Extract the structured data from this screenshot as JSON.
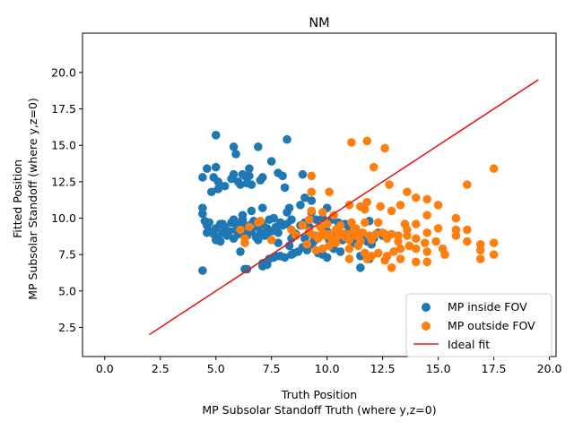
{
  "chart_data": {
    "type": "scatter",
    "title": "NM",
    "xlabel": [
      "Truth Position",
      "MP Subsolar Standoff Truth (where y,z=0)"
    ],
    "ylabel": [
      "Fitted Position",
      "MP Subsolar Standoff (where y,z=0)"
    ],
    "xlim": [
      -1.0,
      20.3
    ],
    "ylim": [
      0.5,
      22.7
    ],
    "xticks": [
      "0.0",
      "2.5",
      "5.0",
      "7.5",
      "10.0",
      "12.5",
      "15.0",
      "17.5",
      "20.0"
    ],
    "xtick_values": [
      0,
      2.5,
      5,
      7.5,
      10,
      12.5,
      15,
      17.5,
      20
    ],
    "yticks": [
      "2.5",
      "5.0",
      "7.5",
      "10.0",
      "12.5",
      "15.0",
      "17.5",
      "20.0"
    ],
    "ytick_values": [
      2.5,
      5,
      7.5,
      10,
      12.5,
      15,
      17.5,
      20
    ],
    "grid": false,
    "legend_position": "bottom-right",
    "series": [
      {
        "name": "MP inside FOV",
        "kind": "scatter",
        "color": "#1f77b4",
        "points": [
          [
            5.0,
            15.7
          ],
          [
            8.2,
            15.4
          ],
          [
            5.8,
            14.9
          ],
          [
            6.9,
            14.9
          ],
          [
            5.9,
            14.4
          ],
          [
            7.5,
            13.9
          ],
          [
            4.6,
            13.4
          ],
          [
            5.0,
            13.5
          ],
          [
            6.5,
            13.4
          ],
          [
            4.4,
            12.8
          ],
          [
            4.9,
            12.8
          ],
          [
            5.1,
            12.5
          ],
          [
            5.4,
            12.2
          ],
          [
            5.7,
            12.7
          ],
          [
            5.8,
            13.0
          ],
          [
            6.0,
            12.5
          ],
          [
            6.1,
            12.3
          ],
          [
            6.3,
            12.9
          ],
          [
            6.4,
            12.4
          ],
          [
            6.6,
            12.3
          ],
          [
            6.2,
            13.0
          ],
          [
            6.5,
            12.9
          ],
          [
            7.0,
            12.6
          ],
          [
            7.1,
            12.8
          ],
          [
            7.8,
            13.1
          ],
          [
            8.0,
            12.9
          ],
          [
            8.1,
            12.1
          ],
          [
            4.8,
            11.8
          ],
          [
            5.1,
            12.0
          ],
          [
            8.9,
            13.0
          ],
          [
            9.0,
            11.4
          ],
          [
            9.3,
            11.2
          ],
          [
            4.4,
            10.7
          ],
          [
            4.4,
            10.3
          ],
          [
            6.2,
            10.2
          ],
          [
            6.6,
            10.5
          ],
          [
            7.1,
            10.7
          ],
          [
            8.2,
            10.4
          ],
          [
            8.3,
            10.7
          ],
          [
            8.8,
            10.9
          ],
          [
            9.3,
            10.4
          ],
          [
            10.0,
            10.7
          ],
          [
            4.5,
            9.8
          ],
          [
            4.6,
            9.5
          ],
          [
            4.7,
            9.7
          ],
          [
            4.8,
            9.1
          ],
          [
            4.9,
            8.9
          ],
          [
            5.0,
            9.3
          ],
          [
            5.1,
            8.7
          ],
          [
            5.2,
            9.6
          ],
          [
            5.3,
            9.0
          ],
          [
            5.4,
            9.4
          ],
          [
            5.5,
            8.8
          ],
          [
            5.6,
            9.1
          ],
          [
            5.2,
            8.4
          ],
          [
            5.7,
            9.7
          ],
          [
            5.8,
            8.6
          ],
          [
            5.9,
            9.2
          ],
          [
            6.0,
            9.6
          ],
          [
            6.1,
            9.0
          ],
          [
            6.2,
            9.9
          ],
          [
            6.3,
            9.3
          ],
          [
            6.4,
            8.8
          ],
          [
            6.5,
            9.5
          ],
          [
            6.6,
            9.1
          ],
          [
            6.7,
            9.8
          ],
          [
            6.8,
            8.7
          ],
          [
            6.9,
            9.4
          ],
          [
            7.0,
            9.0
          ],
          [
            7.1,
            9.6
          ],
          [
            7.2,
            8.8
          ],
          [
            7.3,
            9.3
          ],
          [
            7.4,
            9.9
          ],
          [
            7.5,
            9.1
          ],
          [
            7.6,
            10.0
          ],
          [
            7.7,
            9.4
          ],
          [
            7.8,
            9.0
          ],
          [
            7.9,
            9.7
          ],
          [
            8.0,
            9.5
          ],
          [
            8.2,
            9.6
          ],
          [
            8.4,
            9.9
          ],
          [
            8.5,
            9.0
          ],
          [
            8.6,
            8.9
          ],
          [
            8.8,
            9.5
          ],
          [
            9.0,
            9.7
          ],
          [
            9.2,
            9.4
          ],
          [
            9.5,
            9.9
          ],
          [
            9.8,
            10.0
          ],
          [
            10.2,
            9.9
          ],
          [
            10.5,
            9.7
          ],
          [
            10.8,
            9.6
          ],
          [
            11.0,
            9.3
          ],
          [
            6.1,
            7.7
          ],
          [
            7.1,
            6.9
          ],
          [
            7.1,
            6.7
          ],
          [
            7.3,
            6.8
          ],
          [
            7.4,
            7.2
          ],
          [
            7.6,
            7.3
          ],
          [
            7.7,
            7.4
          ],
          [
            7.9,
            7.4
          ],
          [
            8.1,
            7.3
          ],
          [
            8.4,
            7.5
          ],
          [
            8.5,
            7.6
          ],
          [
            8.3,
            8.1
          ],
          [
            8.7,
            7.7
          ],
          [
            8.9,
            8.0
          ],
          [
            9.1,
            7.8
          ],
          [
            9.3,
            8.2
          ],
          [
            9.6,
            7.6
          ],
          [
            9.8,
            7.5
          ],
          [
            10.0,
            7.3
          ],
          [
            10.3,
            7.9
          ],
          [
            10.6,
            7.7
          ],
          [
            9.0,
            8.6
          ],
          [
            9.4,
            8.4
          ],
          [
            9.7,
            8.8
          ],
          [
            10.1,
            8.5
          ],
          [
            10.4,
            8.8
          ],
          [
            10.7,
            8.5
          ],
          [
            11.0,
            8.7
          ],
          [
            11.2,
            8.3
          ],
          [
            11.4,
            8.6
          ],
          [
            11.6,
            8.9
          ],
          [
            11.8,
            8.4
          ],
          [
            11.9,
            9.8
          ],
          [
            12.3,
            9.0
          ],
          [
            11.5,
            7.4
          ],
          [
            11.5,
            6.6
          ],
          [
            11.7,
            7.6
          ],
          [
            11.9,
            7.2
          ],
          [
            12.1,
            8.6
          ],
          [
            4.4,
            6.4
          ],
          [
            6.3,
            6.5
          ],
          [
            6.4,
            6.5
          ],
          [
            5.0,
            8.5
          ],
          [
            6.0,
            8.9
          ],
          [
            5.3,
            9.6
          ],
          [
            4.6,
            9.0
          ],
          [
            5.8,
            9.9
          ],
          [
            6.2,
            9.8
          ],
          [
            6.9,
            8.5
          ],
          [
            7.3,
            8.9
          ],
          [
            7.8,
            8.3
          ],
          [
            8.4,
            8.6
          ],
          [
            9.2,
            9.0
          ],
          [
            10.0,
            9.1
          ],
          [
            10.8,
            8.9
          ],
          [
            11.3,
            9.1
          ],
          [
            12.0,
            8.2
          ],
          [
            12.5,
            8.8
          ]
        ]
      },
      {
        "name": "MP outside FOV",
        "kind": "scatter",
        "color": "#ff7f0e",
        "points": [
          [
            11.1,
            15.2
          ],
          [
            11.8,
            15.3
          ],
          [
            12.6,
            14.8
          ],
          [
            17.5,
            13.4
          ],
          [
            12.1,
            13.5
          ],
          [
            9.3,
            12.9
          ],
          [
            12.8,
            12.3
          ],
          [
            16.3,
            12.3
          ],
          [
            9.3,
            11.8
          ],
          [
            10.1,
            11.8
          ],
          [
            13.6,
            11.8
          ],
          [
            14.0,
            11.4
          ],
          [
            14.5,
            11.3
          ],
          [
            15.0,
            10.9
          ],
          [
            11.0,
            10.9
          ],
          [
            11.5,
            10.8
          ],
          [
            11.8,
            11.1
          ],
          [
            12.4,
            10.8
          ],
          [
            13.3,
            10.9
          ],
          [
            11.7,
            10.6
          ],
          [
            12.9,
            10.5
          ],
          [
            14.5,
            10.2
          ],
          [
            15.8,
            10.0
          ],
          [
            9.3,
            10.5
          ],
          [
            9.8,
            10.4
          ],
          [
            10.3,
            10.2
          ],
          [
            9.2,
            9.9
          ],
          [
            9.7,
            9.4
          ],
          [
            10.6,
            9.5
          ],
          [
            11.1,
            9.7
          ],
          [
            11.3,
            9.3
          ],
          [
            11.7,
            9.7
          ],
          [
            12.3,
            9.7
          ],
          [
            13.5,
            9.6
          ],
          [
            14.0,
            9.6
          ],
          [
            15.0,
            9.3
          ],
          [
            15.8,
            9.2
          ],
          [
            16.3,
            9.2
          ],
          [
            13.6,
            9.2
          ],
          [
            14.5,
            9.0
          ],
          [
            6.9,
            9.7
          ],
          [
            7.0,
            9.8
          ],
          [
            6.1,
            9.2
          ],
          [
            6.3,
            8.6
          ],
          [
            6.3,
            8.3
          ],
          [
            6.5,
            9.4
          ],
          [
            7.5,
            8.5
          ],
          [
            8.4,
            9.2
          ],
          [
            8.6,
            8.8
          ],
          [
            8.9,
            9.5
          ],
          [
            9.2,
            9.1
          ],
          [
            9.5,
            8.8
          ],
          [
            9.6,
            8.6
          ],
          [
            9.8,
            9.0
          ],
          [
            9.9,
            8.8
          ],
          [
            10.1,
            8.9
          ],
          [
            10.2,
            8.6
          ],
          [
            10.4,
            9.2
          ],
          [
            10.5,
            8.8
          ],
          [
            10.6,
            9.0
          ],
          [
            10.8,
            8.7
          ],
          [
            10.9,
            8.9
          ],
          [
            11.0,
            8.5
          ],
          [
            11.2,
            9.2
          ],
          [
            11.3,
            8.8
          ],
          [
            11.5,
            8.4
          ],
          [
            11.6,
            9.0
          ],
          [
            11.9,
            8.8
          ],
          [
            12.0,
            8.5
          ],
          [
            12.2,
            8.9
          ],
          [
            12.5,
            9.0
          ],
          [
            12.7,
            8.6
          ],
          [
            12.9,
            8.9
          ],
          [
            13.2,
            8.4
          ],
          [
            13.6,
            8.8
          ],
          [
            14.0,
            8.6
          ],
          [
            14.4,
            8.3
          ],
          [
            14.9,
            8.4
          ],
          [
            15.8,
            8.8
          ],
          [
            16.3,
            8.4
          ],
          [
            16.9,
            8.2
          ],
          [
            17.5,
            8.3
          ],
          [
            9.5,
            7.8
          ],
          [
            9.8,
            7.9
          ],
          [
            10.1,
            8.1
          ],
          [
            10.4,
            8.3
          ],
          [
            11.0,
            7.9
          ],
          [
            11.4,
            8.1
          ],
          [
            11.7,
            7.6
          ],
          [
            12.0,
            7.4
          ],
          [
            12.3,
            7.6
          ],
          [
            12.7,
            7.4
          ],
          [
            13.0,
            7.7
          ],
          [
            13.3,
            7.9
          ],
          [
            13.7,
            8.1
          ],
          [
            14.0,
            7.9
          ],
          [
            14.5,
            7.7
          ],
          [
            15.2,
            7.9
          ],
          [
            15.3,
            7.5
          ],
          [
            16.9,
            7.2
          ],
          [
            16.9,
            7.8
          ],
          [
            17.5,
            7.5
          ],
          [
            11.0,
            7.2
          ],
          [
            11.8,
            7.2
          ],
          [
            12.6,
            7.1
          ],
          [
            13.3,
            7.2
          ],
          [
            14.0,
            7.0
          ],
          [
            14.5,
            7.0
          ],
          [
            12.9,
            6.6
          ],
          [
            9.1,
            8.2
          ],
          [
            9.3,
            8.9
          ],
          [
            10.0,
            9.6
          ],
          [
            13.2,
            8.8
          ],
          [
            12.6,
            8.9
          ],
          [
            11.4,
            8.8
          ]
        ]
      },
      {
        "name": "Ideal fit",
        "kind": "line",
        "color": "#e41a1c",
        "points": [
          [
            2.0,
            2.0
          ],
          [
            19.5,
            19.5
          ]
        ]
      }
    ]
  }
}
